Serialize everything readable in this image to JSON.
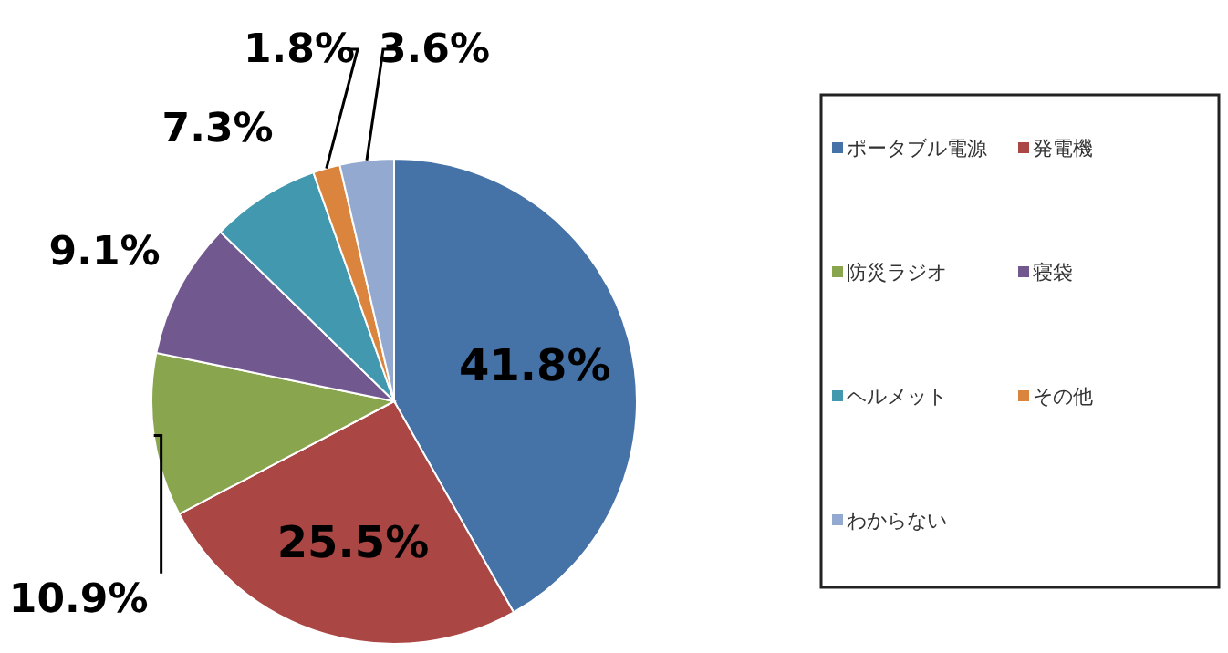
{
  "chart_data": {
    "type": "pie",
    "categories": [
      "ポータブル電源",
      "発電機",
      "防災ラジオ",
      "寝袋",
      "ヘルメット",
      "その他",
      "わからない"
    ],
    "values": [
      41.8,
      25.5,
      10.9,
      9.1,
      7.3,
      1.8,
      3.6
    ],
    "colors": [
      "#4572a7",
      "#aa4643",
      "#89a54e",
      "#71588f",
      "#4198af",
      "#db843d",
      "#93a9cf"
    ],
    "value_labels": [
      "41.8%",
      "25.5%",
      "10.9%",
      "9.1%",
      "7.3%",
      "1.8%",
      "3.6%"
    ],
    "legend": "right"
  }
}
